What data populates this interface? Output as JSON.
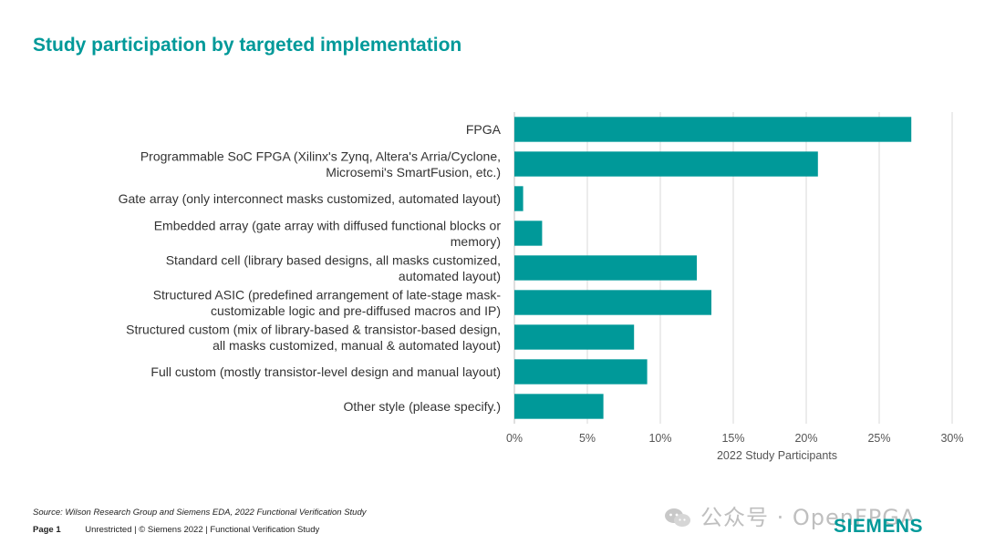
{
  "title": "Study participation by targeted implementation",
  "chart_data": {
    "type": "bar",
    "orientation": "horizontal",
    "categories": [
      [
        "FPGA"
      ],
      [
        "Programmable SoC FPGA (Xilinx's Zynq, Altera's Arria/Cyclone,",
        "Microsemi's SmartFusion, etc.)"
      ],
      [
        "Gate array (only interconnect masks customized, automated layout)"
      ],
      [
        "Embedded array (gate array with diffused functional blocks or",
        "memory)"
      ],
      [
        "Standard cell (library based designs, all masks customized,",
        "automated layout)"
      ],
      [
        "Structured ASIC (predefined arrangement of late-stage mask-",
        "customizable logic and pre-diffused macros and IP)"
      ],
      [
        "Structured custom (mix of library-based & transistor-based design,",
        "all masks customized, manual & automated layout)"
      ],
      [
        "Full custom (mostly transistor-level design and manual layout)"
      ],
      [
        "Other style (please specify.)"
      ]
    ],
    "values": [
      27.2,
      20.8,
      0.6,
      1.9,
      12.5,
      13.5,
      8.2,
      9.1,
      6.1
    ],
    "xlabel": "2022 Study Participants",
    "xlim": [
      0,
      30
    ],
    "xticks": [
      0,
      5,
      10,
      15,
      20,
      25,
      30
    ],
    "tick_format": "percent",
    "grid": "vertical",
    "bar_color": "#009999"
  },
  "source": "Source:  Wilson Research Group and Siemens EDA, 2022 Functional Verification Study",
  "footer": {
    "page": "Page 1",
    "text": "Unrestricted | © Siemens 2022 |  Functional Verification Study"
  },
  "watermark": "公众号 · OpenFPGA",
  "logo": "SIEMENS"
}
